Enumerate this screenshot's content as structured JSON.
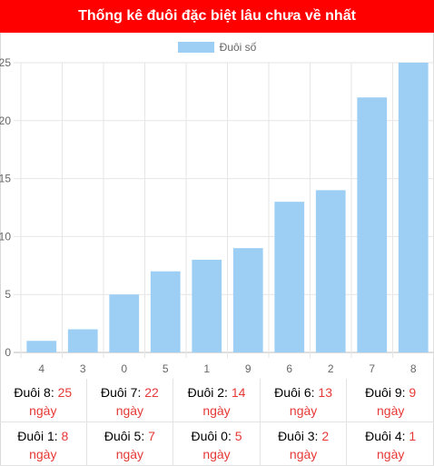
{
  "header": {
    "title": "Thống kê đuôi đặc biệt lâu chưa về nhất"
  },
  "colors": {
    "header_bg": "#ff0000",
    "bar": "#9dcff5",
    "value_text": "#e53935"
  },
  "chart_data": {
    "type": "bar",
    "categories": [
      "4",
      "3",
      "0",
      "5",
      "1",
      "9",
      "6",
      "2",
      "7",
      "8"
    ],
    "series": [
      {
        "name": "Đuôi số",
        "values": [
          1,
          2,
          5,
          7,
          8,
          9,
          13,
          14,
          22,
          25
        ]
      }
    ],
    "ylim": [
      0,
      25
    ],
    "yticks": [
      0,
      5,
      10,
      15,
      20,
      25
    ],
    "grid": true,
    "legend": "top-center",
    "title": "",
    "xlabel": "",
    "ylabel": ""
  },
  "stats": {
    "unit": "ngày",
    "items": [
      {
        "label": "Đuôi 8:",
        "value": "25"
      },
      {
        "label": "Đuôi 7:",
        "value": "22"
      },
      {
        "label": "Đuôi 2:",
        "value": "14"
      },
      {
        "label": "Đuôi 6:",
        "value": "13"
      },
      {
        "label": "Đuôi 9:",
        "value": "9"
      },
      {
        "label": "Đuôi 1:",
        "value": "8"
      },
      {
        "label": "Đuôi 5:",
        "value": "7"
      },
      {
        "label": "Đuôi 0:",
        "value": "5"
      },
      {
        "label": "Đuôi 3:",
        "value": "2"
      },
      {
        "label": "Đuôi 4:",
        "value": "1"
      }
    ]
  }
}
